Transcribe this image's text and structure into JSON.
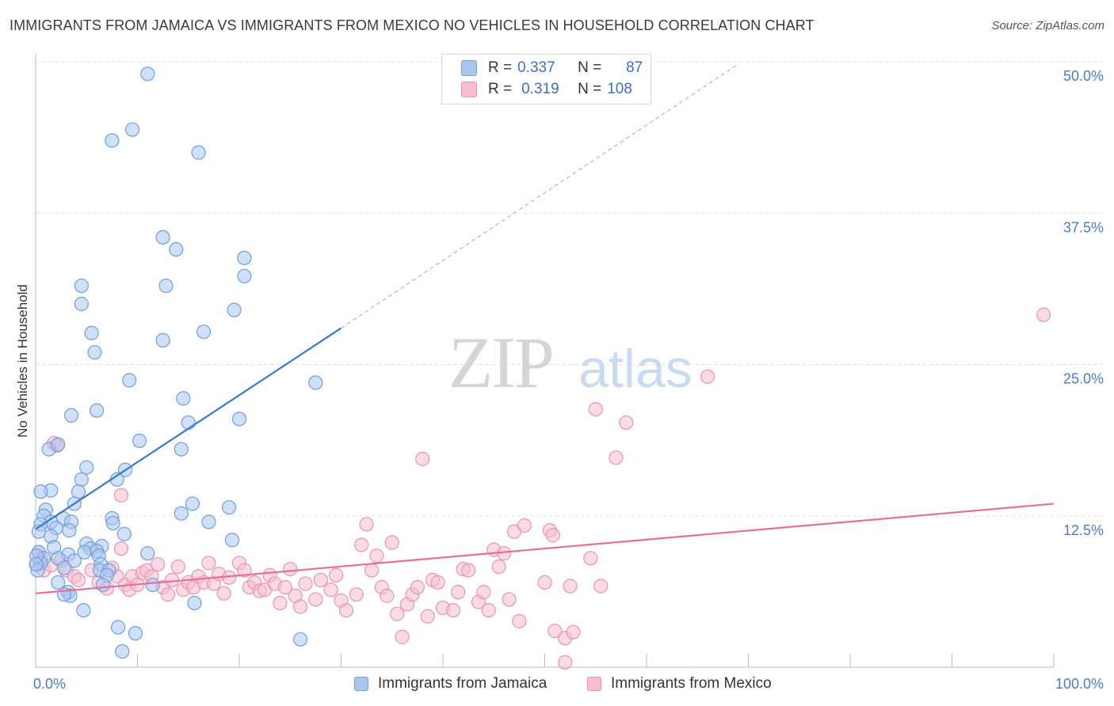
{
  "title": "IMMIGRANTS FROM JAMAICA VS IMMIGRANTS FROM MEXICO NO VEHICLES IN HOUSEHOLD CORRELATION CHART",
  "source": "Source: ZipAtlas.com",
  "watermark": {
    "zip": "ZIP",
    "atlas": "atlas"
  },
  "stats": [
    {
      "r_label": "R =",
      "r": "0.337",
      "n_label": "N =",
      "n": "87"
    },
    {
      "r_label": "R =",
      "r": "0.319",
      "n_label": "N =",
      "n": "108"
    }
  ],
  "colors": {
    "jamaica_fill": "#a9c6ef",
    "jamaica_stroke": "#6f9fdc",
    "jamaica_line": "#3a78d0",
    "mexico_fill": "#f6bdd0",
    "mexico_stroke": "#ea93b2",
    "mexico_line": "#e56f98",
    "tick_label": "#4a7cc7",
    "grid": "#e3e3e3"
  },
  "chart_data": {
    "type": "scatter",
    "title": "IMMIGRANTS FROM JAMAICA VS IMMIGRANTS FROM MEXICO NO VEHICLES IN HOUSEHOLD CORRELATION CHART",
    "xlabel": "",
    "ylabel": "No Vehicles in Household",
    "xlim": [
      0,
      100
    ],
    "ylim": [
      0,
      50
    ],
    "x_tick_labels": [
      "0.0%",
      "100.0%"
    ],
    "y_ticks": [
      12.5,
      25.0,
      37.5,
      50.0
    ],
    "y_tick_labels": [
      "12.5%",
      "25.0%",
      "37.5%",
      "50.0%"
    ],
    "grid": true,
    "legend_position": "bottom",
    "series": [
      {
        "name": "Immigrants from Jamaica",
        "trend": {
          "x0": 0,
          "y0": 11.4,
          "x1": 30,
          "y1": 28.0,
          "dashed_to_x": 69,
          "dashed_to_y": 49.8
        },
        "points": [
          [
            11,
            49
          ],
          [
            9.5,
            44.4
          ],
          [
            7.5,
            43.5
          ],
          [
            16,
            42.5
          ],
          [
            12.5,
            35.5
          ],
          [
            13.8,
            34.5
          ],
          [
            20.5,
            33.8
          ],
          [
            20.5,
            32.3
          ],
          [
            4.5,
            31.5
          ],
          [
            12.8,
            31.5
          ],
          [
            4.5,
            30
          ],
          [
            19.5,
            29.5
          ],
          [
            5.5,
            27.6
          ],
          [
            16.5,
            27.7
          ],
          [
            12.5,
            27
          ],
          [
            5.8,
            26
          ],
          [
            9.2,
            23.7
          ],
          [
            27.5,
            23.5
          ],
          [
            14.5,
            22.2
          ],
          [
            6.0,
            21.2
          ],
          [
            3.5,
            20.8
          ],
          [
            20,
            20.5
          ],
          [
            15,
            20.2
          ],
          [
            10.2,
            18.7
          ],
          [
            1.3,
            18
          ],
          [
            2.2,
            18.4
          ],
          [
            14.3,
            18
          ],
          [
            5,
            16.5
          ],
          [
            8.8,
            16.3
          ],
          [
            4.5,
            15.5
          ],
          [
            8,
            15.5
          ],
          [
            1.5,
            14.6
          ],
          [
            0.5,
            14.5
          ],
          [
            4.2,
            14.5
          ],
          [
            3.8,
            13.5
          ],
          [
            15.4,
            13.5
          ],
          [
            19,
            13.2
          ],
          [
            1.0,
            13.0
          ],
          [
            14.3,
            12.7
          ],
          [
            0.8,
            12.5
          ],
          [
            2.7,
            12.3
          ],
          [
            7.5,
            12.3
          ],
          [
            1.5,
            12
          ],
          [
            3.5,
            12
          ],
          [
            7.6,
            11.9
          ],
          [
            0.5,
            11.8
          ],
          [
            17,
            12
          ],
          [
            2.0,
            11.5
          ],
          [
            3.3,
            11.3
          ],
          [
            0.3,
            11.2
          ],
          [
            1.5,
            10.8
          ],
          [
            8.7,
            11
          ],
          [
            19.3,
            10.5
          ],
          [
            5,
            10.2
          ],
          [
            1.8,
            9.9
          ],
          [
            6.5,
            10
          ],
          [
            5.4,
            9.8
          ],
          [
            6.0,
            9.6
          ],
          [
            0.3,
            9.5
          ],
          [
            3.2,
            9.3
          ],
          [
            4.8,
            9.5
          ],
          [
            11,
            9.4
          ],
          [
            0.8,
            9.0
          ],
          [
            6.2,
            9.2
          ],
          [
            2.2,
            9.0
          ],
          [
            3.8,
            8.8
          ],
          [
            0.5,
            8.6
          ],
          [
            6.4,
            8.5
          ],
          [
            6.3,
            8.0
          ],
          [
            7.2,
            8.0
          ],
          [
            2.8,
            8.2
          ],
          [
            7.0,
            7.6
          ],
          [
            0.2,
            8.0
          ],
          [
            2.2,
            7.0
          ],
          [
            6.6,
            6.8
          ],
          [
            11.5,
            6.8
          ],
          [
            3.2,
            6.2
          ],
          [
            3.4,
            5.9
          ],
          [
            2.8,
            6.0
          ],
          [
            15.6,
            5.3
          ],
          [
            4.7,
            4.7
          ],
          [
            8.1,
            3.3
          ],
          [
            9.8,
            2.8
          ],
          [
            26,
            2.3
          ],
          [
            8.5,
            1.3
          ],
          [
            0.1,
            9.2
          ],
          [
            0.05,
            8.5
          ]
        ]
      },
      {
        "name": "Immigrants from Mexico",
        "trend": {
          "x0": 0,
          "y0": 6.1,
          "x1": 100,
          "y1": 13.5
        },
        "points": [
          [
            1.8,
            18.5
          ],
          [
            2.1,
            18.3
          ],
          [
            0.3,
            9.5
          ],
          [
            0.5,
            9.0
          ],
          [
            0.1,
            8.5
          ],
          [
            0.8,
            8.0
          ],
          [
            1.5,
            8.4
          ],
          [
            2.5,
            8.8
          ],
          [
            3.0,
            8.0
          ],
          [
            3.8,
            7.5
          ],
          [
            4.2,
            7.2
          ],
          [
            5.5,
            8.0
          ],
          [
            6.2,
            7.0
          ],
          [
            7.0,
            6.5
          ],
          [
            7.5,
            8.2
          ],
          [
            8.0,
            7.5
          ],
          [
            8.4,
            9.8
          ],
          [
            8.8,
            6.8
          ],
          [
            9.2,
            6.4
          ],
          [
            8.4,
            14.2
          ],
          [
            9.5,
            7.5
          ],
          [
            10.0,
            6.8
          ],
          [
            10.5,
            7.8
          ],
          [
            10.9,
            8.0
          ],
          [
            11.4,
            7.5
          ],
          [
            12.0,
            8.5
          ],
          [
            12.5,
            6.6
          ],
          [
            13.0,
            6.0
          ],
          [
            13.4,
            7.2
          ],
          [
            14.0,
            8.3
          ],
          [
            14.5,
            6.4
          ],
          [
            15.0,
            7.0
          ],
          [
            15.5,
            6.6
          ],
          [
            16.0,
            7.5
          ],
          [
            16.5,
            7.0
          ],
          [
            17.0,
            8.6
          ],
          [
            17.5,
            6.9
          ],
          [
            18.0,
            7.7
          ],
          [
            18.5,
            6.1
          ],
          [
            19.0,
            7.4
          ],
          [
            20.0,
            8.6
          ],
          [
            20.5,
            8.0
          ],
          [
            21.0,
            6.6
          ],
          [
            21.5,
            7.0
          ],
          [
            22.0,
            6.3
          ],
          [
            22.5,
            6.4
          ],
          [
            23.0,
            7.6
          ],
          [
            23.5,
            6.9
          ],
          [
            24.0,
            5.3
          ],
          [
            24.5,
            6.6
          ],
          [
            25.0,
            8.1
          ],
          [
            25.5,
            5.9
          ],
          [
            26.0,
            5.0
          ],
          [
            26.5,
            6.9
          ],
          [
            27.5,
            5.6
          ],
          [
            28.0,
            7.2
          ],
          [
            29.0,
            6.4
          ],
          [
            29.5,
            7.6
          ],
          [
            30.0,
            5.5
          ],
          [
            30.5,
            4.7
          ],
          [
            31.5,
            6.0
          ],
          [
            32.0,
            10.1
          ],
          [
            32.5,
            11.8
          ],
          [
            33.0,
            8.0
          ],
          [
            33.5,
            9.2
          ],
          [
            34.0,
            6.6
          ],
          [
            34.5,
            5.9
          ],
          [
            35.0,
            10.3
          ],
          [
            35.5,
            4.4
          ],
          [
            36.0,
            2.5
          ],
          [
            36.5,
            5.2
          ],
          [
            37.0,
            6.0
          ],
          [
            37.5,
            6.6
          ],
          [
            38.0,
            17.2
          ],
          [
            38.5,
            4.2
          ],
          [
            39.0,
            7.2
          ],
          [
            39.5,
            7.0
          ],
          [
            40.0,
            4.9
          ],
          [
            41.0,
            4.7
          ],
          [
            41.5,
            6.2
          ],
          [
            42.0,
            8.1
          ],
          [
            42.5,
            8.0
          ],
          [
            43.5,
            5.4
          ],
          [
            44.0,
            6.2
          ],
          [
            44.5,
            4.7
          ],
          [
            45.0,
            9.7
          ],
          [
            45.5,
            8.3
          ],
          [
            46.0,
            9.4
          ],
          [
            46.5,
            5.6
          ],
          [
            47.0,
            11.2
          ],
          [
            47.5,
            3.8
          ],
          [
            48.0,
            11.7
          ],
          [
            50.0,
            7.0
          ],
          [
            50.5,
            11.3
          ],
          [
            50.8,
            10.9
          ],
          [
            51.0,
            3.0
          ],
          [
            52.0,
            2.4
          ],
          [
            52.5,
            6.7
          ],
          [
            52.0,
            0.4
          ],
          [
            52.8,
            2.9
          ],
          [
            54.5,
            9.0
          ],
          [
            55.0,
            21.3
          ],
          [
            55.5,
            6.7
          ],
          [
            57.0,
            17.3
          ],
          [
            58.0,
            20.2
          ],
          [
            66.0,
            24.0
          ],
          [
            99.0,
            29.1
          ]
        ]
      }
    ]
  },
  "legend": {
    "items": [
      {
        "label": "Immigrants from Jamaica"
      },
      {
        "label": "Immigrants from Mexico"
      }
    ]
  }
}
